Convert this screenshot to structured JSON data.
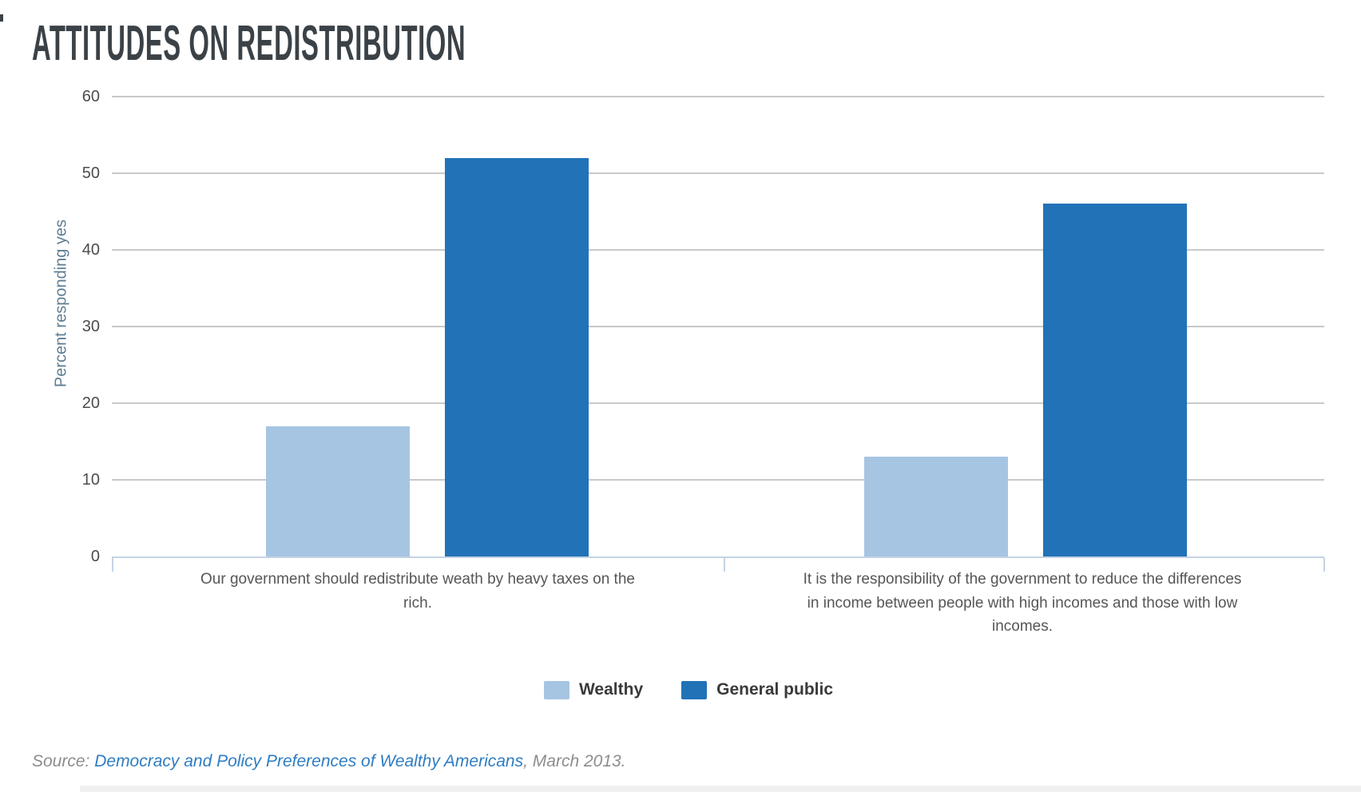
{
  "title": "ATTITUDES ON REDISTRIBUTION",
  "chart_data": {
    "type": "bar",
    "title": "ATTITUDES ON REDISTRIBUTION",
    "ylabel": "Percent responding yes",
    "xlabel": "",
    "ylim": [
      0,
      60
    ],
    "yticks": [
      0,
      10,
      20,
      30,
      40,
      50,
      60
    ],
    "grid": "horizontal gridlines on",
    "legend_position": "bottom center",
    "categories": [
      "Our government should redistribute weath by heavy taxes on the rich.",
      "It is the responsibility of the government to reduce the differences in income between people with high incomes and those with low incomes."
    ],
    "series": [
      {
        "name": "Wealthy",
        "color": "#a6c5e3",
        "values": [
          17,
          13
        ]
      },
      {
        "name": "General public",
        "color": "#2272b8",
        "values": [
          52,
          46
        ]
      }
    ]
  },
  "category_label_lines": [
    [
      "Our government should redistribute weath by heavy taxes on the",
      "rich."
    ],
    [
      "It is the responsibility of the government to reduce the differences",
      "in income between people with high incomes and those with low",
      "incomes."
    ]
  ],
  "source": {
    "label": "Source: ",
    "link_text": "Democracy and Policy Preferences of Wealthy Americans",
    "suffix": ", March 2013."
  },
  "colors": {
    "title_text": "#3b4247",
    "y_axis_title": "#5d7d93",
    "tick_label": "#4b4c4e",
    "gridline": "#c9c9c9",
    "baseline": "#c4d3e3",
    "category_label": "#565659",
    "legend_label": "#3a3a3c",
    "source_text": "#8d8d8d",
    "source_link": "#2f7dc2"
  }
}
